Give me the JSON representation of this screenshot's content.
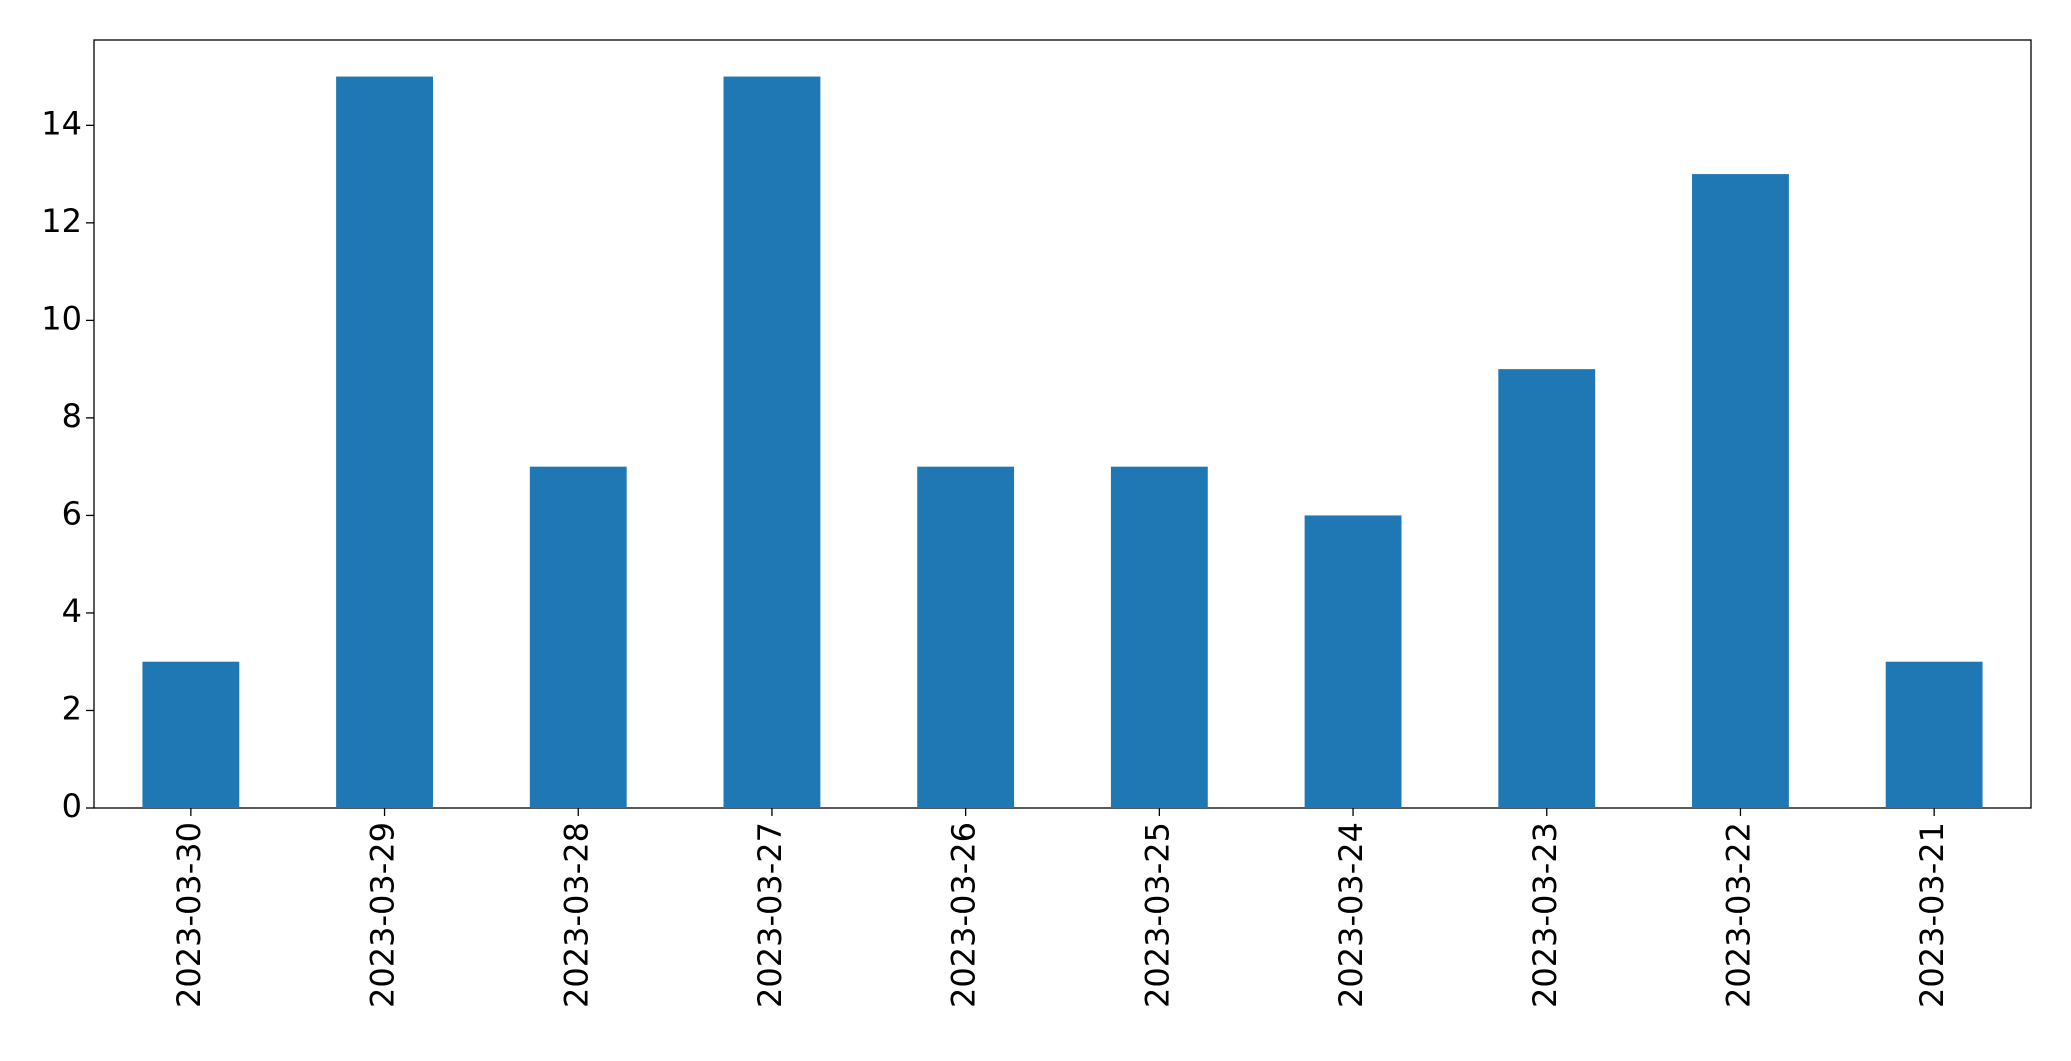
{
  "chart_data": {
    "type": "bar",
    "categories": [
      "2023-03-30",
      "2023-03-29",
      "2023-03-28",
      "2023-03-27",
      "2023-03-26",
      "2023-03-25",
      "2023-03-24",
      "2023-03-23",
      "2023-03-22",
      "2023-03-21"
    ],
    "values": [
      3,
      15,
      7,
      15,
      7,
      7,
      6,
      9,
      13,
      3
    ],
    "color": "#1f77b4",
    "ylim": [
      0,
      15.75
    ],
    "yticks": [
      0,
      2,
      4,
      6,
      8,
      10,
      12,
      14
    ],
    "grid": false
  }
}
